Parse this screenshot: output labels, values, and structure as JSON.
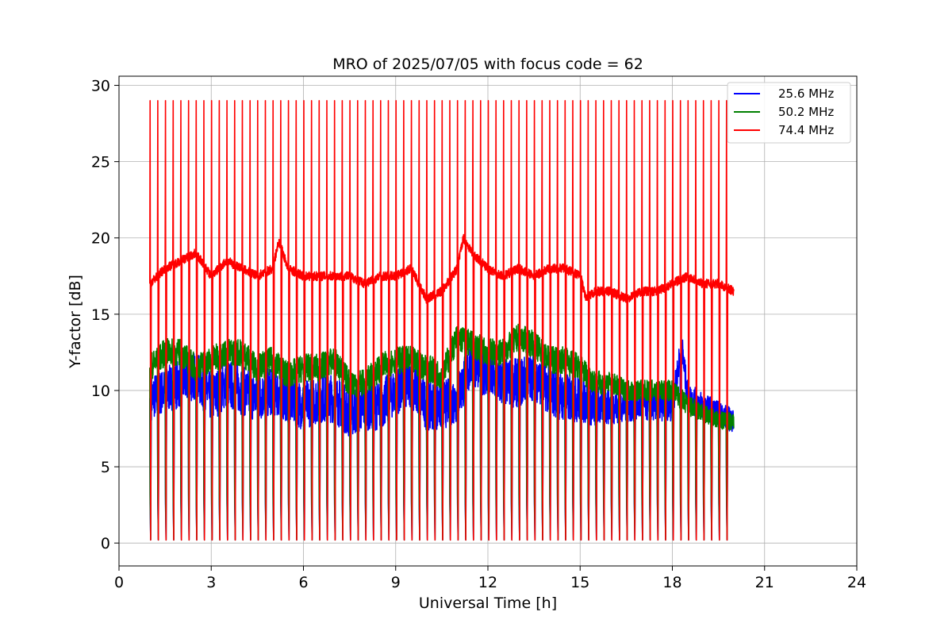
{
  "chart_data": {
    "type": "line",
    "title": "MRO of 2025/07/05 with focus code = 62",
    "xlabel": "Universal Time [h]",
    "ylabel": "Y-factor [dB]",
    "xlim": [
      0,
      24
    ],
    "ylim": [
      -1.5,
      30.6
    ],
    "xticks": [
      0,
      3,
      6,
      9,
      12,
      15,
      18,
      21,
      24
    ],
    "yticks": [
      0,
      5,
      10,
      15,
      20,
      25,
      30
    ],
    "grid": true,
    "legend_position": "top-right",
    "calibration": {
      "start_h": 1.0,
      "end_h": 19.75,
      "interval_h": 0.25,
      "peak_db": 29.0,
      "trough_db": 0.2
    },
    "series": [
      {
        "name": "25.6 MHz",
        "color": "#0000ff",
        "x": [
          1.0,
          1.5,
          2.0,
          2.5,
          3.0,
          3.5,
          4.0,
          4.5,
          5.0,
          5.5,
          6.0,
          6.5,
          7.0,
          7.5,
          8.0,
          8.5,
          9.0,
          9.5,
          10.0,
          10.5,
          11.0,
          11.5,
          12.0,
          12.5,
          13.0,
          13.5,
          14.0,
          14.5,
          15.0,
          15.5,
          16.0,
          16.5,
          17.0,
          17.5,
          18.0,
          18.3,
          18.5,
          19.0,
          19.5,
          20.0
        ],
        "y": [
          9.5,
          10.0,
          10.5,
          11.0,
          9.5,
          10.5,
          10.0,
          9.5,
          10.0,
          9.5,
          9.0,
          9.5,
          9.5,
          8.5,
          9.0,
          9.0,
          10.0,
          10.5,
          9.0,
          9.0,
          9.5,
          12.0,
          11.0,
          10.5,
          10.5,
          11.0,
          10.0,
          9.5,
          9.5,
          9.0,
          9.0,
          9.0,
          9.0,
          9.0,
          9.0,
          13.0,
          9.5,
          9.0,
          8.5,
          8.0
        ],
        "spread": [
          1.5,
          1.5,
          1.6,
          1.6,
          1.6,
          1.6,
          1.6,
          1.6,
          1.6,
          1.6,
          1.6,
          1.6,
          1.6,
          1.6,
          1.6,
          1.6,
          1.6,
          1.6,
          1.6,
          1.6,
          1.6,
          1.6,
          1.6,
          1.6,
          1.6,
          1.6,
          1.6,
          1.6,
          1.6,
          1.4,
          1.2,
          1.1,
          1.0,
          1.0,
          1.0,
          1.0,
          1.0,
          0.9,
          0.8,
          0.8
        ]
      },
      {
        "name": "50.2 MHz",
        "color": "#008000",
        "x": [
          1.0,
          1.5,
          2.0,
          2.5,
          3.0,
          3.5,
          4.0,
          4.5,
          5.0,
          5.5,
          6.0,
          6.5,
          7.0,
          7.5,
          8.0,
          8.5,
          9.0,
          9.5,
          10.0,
          10.5,
          11.0,
          11.5,
          12.0,
          12.5,
          13.0,
          13.5,
          14.0,
          14.5,
          15.0,
          15.5,
          16.0,
          16.5,
          17.0,
          17.5,
          18.0,
          18.5,
          19.0,
          19.5,
          20.0
        ],
        "y": [
          11.5,
          12.5,
          12.5,
          11.5,
          12.0,
          12.5,
          12.5,
          11.5,
          12.0,
          11.0,
          11.5,
          11.5,
          12.0,
          10.5,
          10.5,
          11.5,
          12.0,
          12.0,
          11.5,
          11.0,
          13.5,
          13.0,
          12.5,
          12.5,
          13.5,
          13.0,
          12.0,
          12.0,
          11.5,
          10.5,
          10.5,
          10.0,
          10.0,
          10.0,
          10.0,
          9.0,
          8.5,
          8.0,
          8.0
        ],
        "spread": [
          0.9,
          0.9,
          0.9,
          0.9,
          0.9,
          0.9,
          0.9,
          0.9,
          0.9,
          0.9,
          0.9,
          0.9,
          0.9,
          0.9,
          0.9,
          0.9,
          0.9,
          0.9,
          0.9,
          0.9,
          0.9,
          0.9,
          0.9,
          0.9,
          0.9,
          0.9,
          0.9,
          0.9,
          0.9,
          0.8,
          0.7,
          0.7,
          0.7,
          0.7,
          0.7,
          0.7,
          0.6,
          0.6,
          0.6
        ]
      },
      {
        "name": "74.4 MHz",
        "color": "#ff0000",
        "x": [
          1.0,
          1.5,
          2.0,
          2.5,
          3.0,
          3.5,
          4.0,
          4.5,
          5.0,
          5.2,
          5.5,
          6.0,
          6.5,
          7.0,
          7.5,
          8.0,
          8.5,
          9.0,
          9.5,
          10.0,
          10.5,
          11.0,
          11.2,
          11.5,
          12.0,
          12.5,
          13.0,
          13.5,
          14.0,
          14.5,
          15.0,
          15.2,
          15.5,
          16.0,
          16.5,
          17.0,
          17.5,
          18.0,
          18.5,
          19.0,
          19.5,
          20.0
        ],
        "y": [
          17.0,
          18.0,
          18.5,
          19.0,
          17.5,
          18.5,
          18.0,
          17.5,
          18.0,
          19.8,
          18.0,
          17.5,
          17.5,
          17.5,
          17.5,
          17.0,
          17.5,
          17.5,
          18.0,
          16.0,
          16.5,
          18.0,
          20.0,
          19.0,
          18.0,
          17.5,
          18.0,
          17.5,
          18.0,
          18.0,
          17.5,
          16.0,
          16.5,
          16.5,
          16.0,
          16.5,
          16.5,
          17.0,
          17.5,
          17.0,
          17.0,
          16.5
        ],
        "spread": [
          0.3,
          0.3,
          0.3,
          0.3,
          0.3,
          0.3,
          0.3,
          0.3,
          0.3,
          0.3,
          0.3,
          0.3,
          0.3,
          0.3,
          0.3,
          0.3,
          0.3,
          0.3,
          0.3,
          0.3,
          0.3,
          0.3,
          0.3,
          0.3,
          0.3,
          0.3,
          0.3,
          0.3,
          0.3,
          0.3,
          0.3,
          0.3,
          0.3,
          0.3,
          0.3,
          0.3,
          0.3,
          0.3,
          0.3,
          0.3,
          0.3,
          0.3
        ]
      }
    ]
  }
}
